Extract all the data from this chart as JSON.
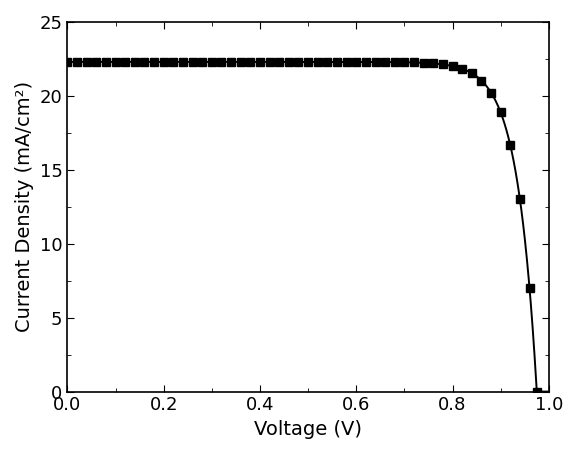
{
  "title": "",
  "xlabel": "Voltage (V)",
  "ylabel": "Current Density (mA/cm²)",
  "xlim": [
    0.0,
    1.0
  ],
  "ylim": [
    0,
    25
  ],
  "yticks": [
    0,
    5,
    10,
    15,
    20,
    25
  ],
  "xticks": [
    0.0,
    0.2,
    0.4,
    0.6,
    0.8,
    1.0
  ],
  "line_color": "#000000",
  "marker": "s",
  "marker_color": "#000000",
  "marker_size": 6,
  "linewidth": 1.4,
  "Jsc": 22.3,
  "Voc": 0.975,
  "n_factor": 25.0,
  "background_color": "#ffffff",
  "tick_fontsize": 13,
  "label_fontsize": 14,
  "marker_V": [
    0.0,
    0.02,
    0.04,
    0.06,
    0.08,
    0.1,
    0.12,
    0.14,
    0.16,
    0.18,
    0.2,
    0.22,
    0.24,
    0.26,
    0.28,
    0.3,
    0.32,
    0.34,
    0.36,
    0.38,
    0.4,
    0.42,
    0.44,
    0.46,
    0.48,
    0.5,
    0.52,
    0.54,
    0.56,
    0.58,
    0.6,
    0.62,
    0.64,
    0.66,
    0.68,
    0.7,
    0.72,
    0.74,
    0.76,
    0.78,
    0.8,
    0.82,
    0.84,
    0.86,
    0.88,
    0.9,
    0.92,
    0.94,
    0.96,
    0.975
  ]
}
